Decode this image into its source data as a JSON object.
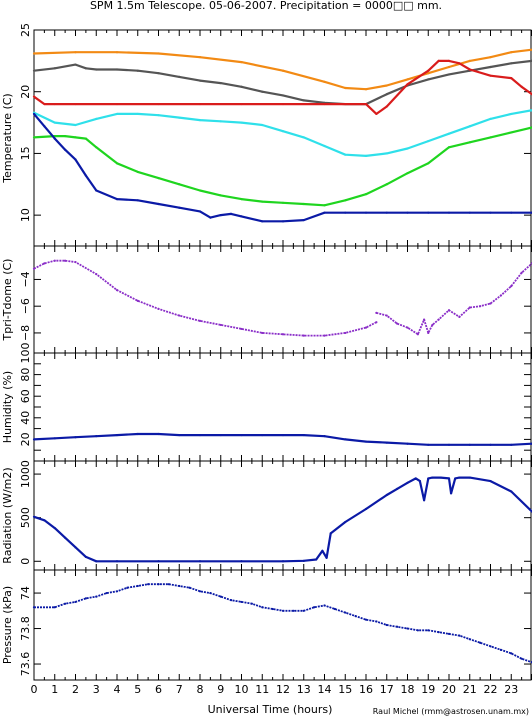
{
  "title": "SPM 1.5m Telescope. 05-06-2007. Precipitation = 0000□□ mm.",
  "xlabel": "Universal Time (hours)",
  "credit": "Raul Michel (rmm@astrosen.unam.mx)",
  "colors": {
    "orange": "#f28a14",
    "gray": "#555555",
    "red": "#d91c1c",
    "cyan": "#2fe0ea",
    "green": "#1fd51f",
    "blue": "#0b1aa6",
    "purple": "#8a2ec8"
  },
  "chart_data": [
    {
      "type": "line",
      "ylabel": "Temperature (C)",
      "xlim": [
        0,
        24
      ],
      "ylim": [
        7.5,
        25
      ],
      "yticks": [
        10,
        15,
        20,
        25
      ],
      "xticks": [
        "0",
        "1",
        "2",
        "3",
        "4",
        "5",
        "6",
        "7",
        "8",
        "9",
        "10",
        "11",
        "12",
        "13",
        "14",
        "15",
        "16",
        "17",
        "18",
        "19",
        "20",
        "21",
        "22",
        "23"
      ],
      "series": [
        {
          "color": "orange",
          "x": [
            0,
            2,
            4,
            6,
            8,
            10,
            12,
            14,
            15,
            16,
            17,
            18,
            19,
            20,
            21,
            22,
            23,
            24
          ],
          "y": [
            23.1,
            23.2,
            23.2,
            23.1,
            22.8,
            22.4,
            21.7,
            20.8,
            20.3,
            20.2,
            20.5,
            21.0,
            21.5,
            22.0,
            22.5,
            22.8,
            23.2,
            23.4
          ]
        },
        {
          "color": "gray",
          "x": [
            0,
            1,
            2,
            2.5,
            3,
            4,
            5,
            6,
            7,
            8,
            9,
            10,
            11,
            12,
            13,
            14,
            15,
            16,
            17,
            18,
            19,
            20,
            21,
            22,
            23,
            24
          ],
          "y": [
            21.7,
            21.9,
            22.2,
            21.9,
            21.8,
            21.8,
            21.7,
            21.5,
            21.2,
            20.9,
            20.7,
            20.4,
            20.0,
            19.7,
            19.3,
            19.1,
            19.0,
            19.0,
            19.8,
            20.5,
            21.0,
            21.4,
            21.7,
            22.0,
            22.3,
            22.5
          ]
        },
        {
          "color": "red",
          "x": [
            0,
            0.5,
            1,
            2,
            4,
            6,
            8,
            10,
            12,
            14,
            16,
            16.5,
            17,
            18,
            19,
            19.5,
            20,
            20.5,
            21,
            22,
            23,
            23.5,
            24
          ],
          "y": [
            19.6,
            19.0,
            19.0,
            19.0,
            19.0,
            19.0,
            19.0,
            19.0,
            19.0,
            19.0,
            19.0,
            18.2,
            18.8,
            20.6,
            21.7,
            22.5,
            22.5,
            22.3,
            21.8,
            21.3,
            21.1,
            20.4,
            19.8
          ]
        },
        {
          "color": "cyan",
          "x": [
            0,
            1,
            2,
            3,
            4,
            5,
            6,
            7,
            8,
            9,
            10,
            11,
            12,
            13,
            14,
            15,
            16,
            17,
            18,
            19,
            20,
            21,
            22,
            23,
            24
          ],
          "y": [
            18.3,
            17.5,
            17.3,
            17.8,
            18.2,
            18.2,
            18.1,
            17.9,
            17.7,
            17.6,
            17.5,
            17.3,
            16.8,
            16.3,
            15.6,
            14.9,
            14.8,
            15.0,
            15.4,
            16.0,
            16.6,
            17.2,
            17.8,
            18.2,
            18.5
          ]
        },
        {
          "color": "green",
          "x": [
            0,
            1,
            1.5,
            2,
            2.5,
            3,
            4,
            5,
            6,
            7,
            8,
            9,
            10,
            11,
            12,
            13,
            14,
            15,
            16,
            17,
            18,
            19,
            20,
            21,
            22,
            23,
            24
          ],
          "y": [
            16.3,
            16.4,
            16.4,
            16.3,
            16.2,
            15.5,
            14.2,
            13.5,
            13.0,
            12.5,
            12.0,
            11.6,
            11.3,
            11.1,
            11.0,
            10.9,
            10.8,
            11.2,
            11.7,
            12.5,
            13.4,
            14.2,
            15.5,
            15.9,
            16.3,
            16.7,
            17.1
          ]
        },
        {
          "color": "blue",
          "x": [
            0,
            0.5,
            1,
            1.5,
            2,
            2.5,
            3,
            4,
            5,
            6,
            7,
            8,
            8.5,
            9,
            9.5,
            10,
            11,
            12,
            13,
            14,
            15,
            16,
            17,
            18,
            19,
            20,
            21,
            22,
            23,
            24
          ],
          "y": [
            18.2,
            17.2,
            16.2,
            15.3,
            14.5,
            13.2,
            12.0,
            11.3,
            11.2,
            10.9,
            10.6,
            10.3,
            9.8,
            10.0,
            10.1,
            9.9,
            9.5,
            9.5,
            9.6,
            10.2,
            10.2,
            10.2,
            10.2,
            10.2,
            10.2,
            10.2,
            10.2,
            10.2,
            10.2,
            10.2
          ]
        }
      ]
    },
    {
      "type": "scatter",
      "ylabel": "Tpri-Tdome (C)",
      "xlim": [
        0,
        24
      ],
      "ylim": [
        -9.5,
        -1.5
      ],
      "yticks": [
        -8,
        -6,
        -4
      ],
      "series": [
        {
          "color": "purple",
          "x": [
            0,
            0.5,
            1,
            1.5,
            2,
            3,
            4,
            5,
            6,
            7,
            8,
            9,
            10,
            11,
            12,
            13,
            14,
            15,
            16,
            16.5
          ],
          "y": [
            -3.2,
            -2.8,
            -2.6,
            -2.6,
            -2.7,
            -3.6,
            -4.8,
            -5.6,
            -6.2,
            -6.7,
            -7.1,
            -7.4,
            -7.7,
            -8.0,
            -8.1,
            -8.2,
            -8.2,
            -8.0,
            -7.6,
            -7.2
          ]
        },
        {
          "color": "purple",
          "x": [
            16.5,
            17,
            17.5,
            18,
            18.5,
            18.8,
            19,
            19.2,
            19.5,
            20,
            20.5,
            21,
            21.5,
            22,
            22.5,
            23,
            23.5,
            24
          ],
          "y": [
            -6.5,
            -6.7,
            -7.3,
            -7.6,
            -8.1,
            -7.0,
            -8.0,
            -7.4,
            -7.0,
            -6.3,
            -6.8,
            -6.1,
            -6.0,
            -5.8,
            -5.2,
            -4.5,
            -3.5,
            -2.8
          ]
        }
      ]
    },
    {
      "type": "line",
      "ylabel": "Humidity (%)",
      "xlim": [
        0,
        24
      ],
      "ylim": [
        0,
        100
      ],
      "yticks": [
        0,
        10,
        20,
        30,
        40,
        50,
        60,
        70,
        80,
        90,
        100
      ],
      "ytick_labels": [
        "",
        "",
        "20",
        "",
        "40",
        "",
        "60",
        "",
        "80",
        "",
        "100"
      ],
      "series": [
        {
          "color": "blue",
          "x": [
            0,
            1,
            2,
            3,
            4,
            5,
            6,
            7,
            8,
            9,
            10,
            11,
            12,
            13,
            14,
            15,
            16,
            17,
            18,
            19,
            20,
            21,
            22,
            23,
            24
          ],
          "y": [
            20,
            21,
            22,
            23,
            24,
            25,
            25,
            24,
            24,
            24,
            24,
            24,
            24,
            24,
            23,
            20,
            18,
            17,
            16,
            15,
            15,
            15,
            15,
            15,
            16
          ]
        }
      ]
    },
    {
      "type": "line",
      "ylabel": "Radiation (W/m2)",
      "xlim": [
        0,
        24
      ],
      "ylim": [
        -100,
        1150
      ],
      "yticks": [
        0,
        500,
        1000
      ],
      "series": [
        {
          "color": "blue",
          "x": [
            0,
            0.5,
            1,
            1.5,
            2,
            2.5,
            3,
            4,
            6,
            8,
            10,
            12,
            13,
            13.6,
            13.9,
            14.1,
            14.3,
            15,
            16,
            17,
            17.5,
            18,
            18.4,
            18.6,
            18.8,
            19,
            19.2,
            19.6,
            20,
            20.1,
            20.3,
            20.5,
            21,
            22,
            23,
            24
          ],
          "y": [
            510,
            470,
            380,
            270,
            160,
            50,
            0,
            0,
            0,
            0,
            0,
            0,
            5,
            20,
            120,
            40,
            320,
            450,
            600,
            760,
            830,
            900,
            950,
            920,
            700,
            950,
            960,
            960,
            950,
            780,
            950,
            960,
            960,
            920,
            800,
            570
          ]
        }
      ]
    },
    {
      "type": "scatter",
      "ylabel": "Pressure (kPa)",
      "xlim": [
        0,
        24
      ],
      "ylim": [
        73.51,
        74.13
      ],
      "yticks": [
        73.6,
        73.8,
        74
      ],
      "series": [
        {
          "color": "blue",
          "x": [
            0,
            1,
            1.5,
            2,
            2.5,
            3,
            3.5,
            4,
            4.5,
            5,
            5.5,
            6,
            6.5,
            7,
            7.5,
            8,
            8.5,
            9,
            9.5,
            10,
            10.5,
            11,
            11.5,
            12,
            12.5,
            13,
            13.5,
            14,
            14.5,
            15,
            15.5,
            16,
            16.5,
            17,
            17.5,
            18,
            18.5,
            19,
            19.5,
            20,
            20.5,
            21,
            21.5,
            22,
            22.5,
            23,
            23.5,
            24
          ],
          "y": [
            73.92,
            73.92,
            73.94,
            73.95,
            73.97,
            73.98,
            74.0,
            74.01,
            74.03,
            74.04,
            74.05,
            74.05,
            74.05,
            74.04,
            74.03,
            74.01,
            74.0,
            73.98,
            73.96,
            73.95,
            73.94,
            73.92,
            73.91,
            73.9,
            73.9,
            73.9,
            73.92,
            73.93,
            73.91,
            73.89,
            73.87,
            73.85,
            73.84,
            73.82,
            73.81,
            73.8,
            73.79,
            73.79,
            73.78,
            73.77,
            73.76,
            73.74,
            73.72,
            73.7,
            73.68,
            73.66,
            73.63,
            73.61
          ]
        }
      ]
    }
  ]
}
